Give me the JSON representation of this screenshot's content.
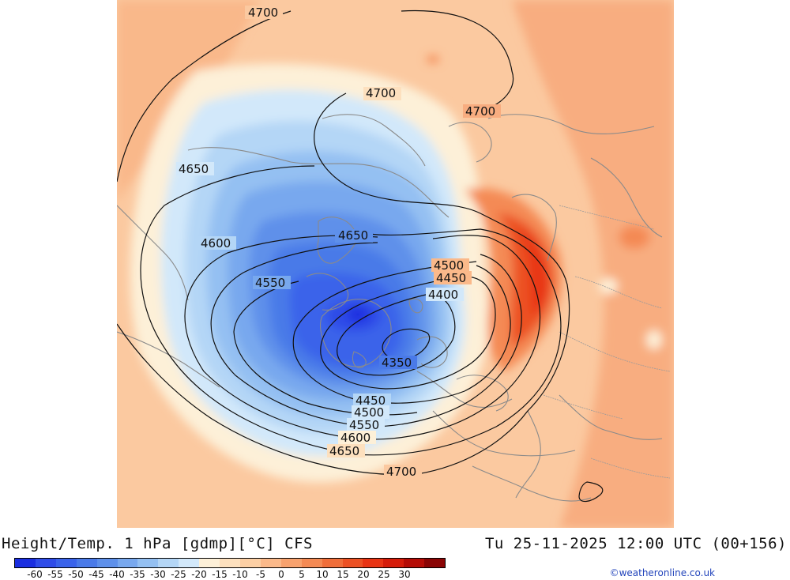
{
  "title": "Height/Temp. 1 hPa [gdmp][°C] CFS",
  "datetime": "Tu 25-11-2025 12:00 UTC (00+156)",
  "credit": "©weatheronline.co.uk",
  "colorbar": {
    "ticks": [
      "-60",
      "-55",
      "-50",
      "-45",
      "-40",
      "-35",
      "-30",
      "-25",
      "-20",
      "-15",
      "-10",
      "-5",
      "0",
      "5",
      "10",
      "15",
      "20",
      "25",
      "30"
    ],
    "colors": [
      "#1a2ee0",
      "#2f4ce8",
      "#3a63ea",
      "#4a7ae8",
      "#5e90ea",
      "#78a8ee",
      "#94c0f2",
      "#b4d6f6",
      "#d2e8fa",
      "#fdf0d8",
      "#fde0be",
      "#fccfa4",
      "#fbb98a",
      "#f8a26e",
      "#f48a54",
      "#f06e3a",
      "#ec5124",
      "#e83414",
      "#d51c0a",
      "#b50c06",
      "#8a0404"
    ]
  },
  "contour_labels": [
    "4700",
    "4700",
    "4700",
    "4650",
    "4650",
    "4600",
    "4550",
    "4500",
    "4450",
    "4400",
    "4350",
    "4450",
    "4500",
    "4550",
    "4600",
    "4650",
    "4700"
  ]
}
